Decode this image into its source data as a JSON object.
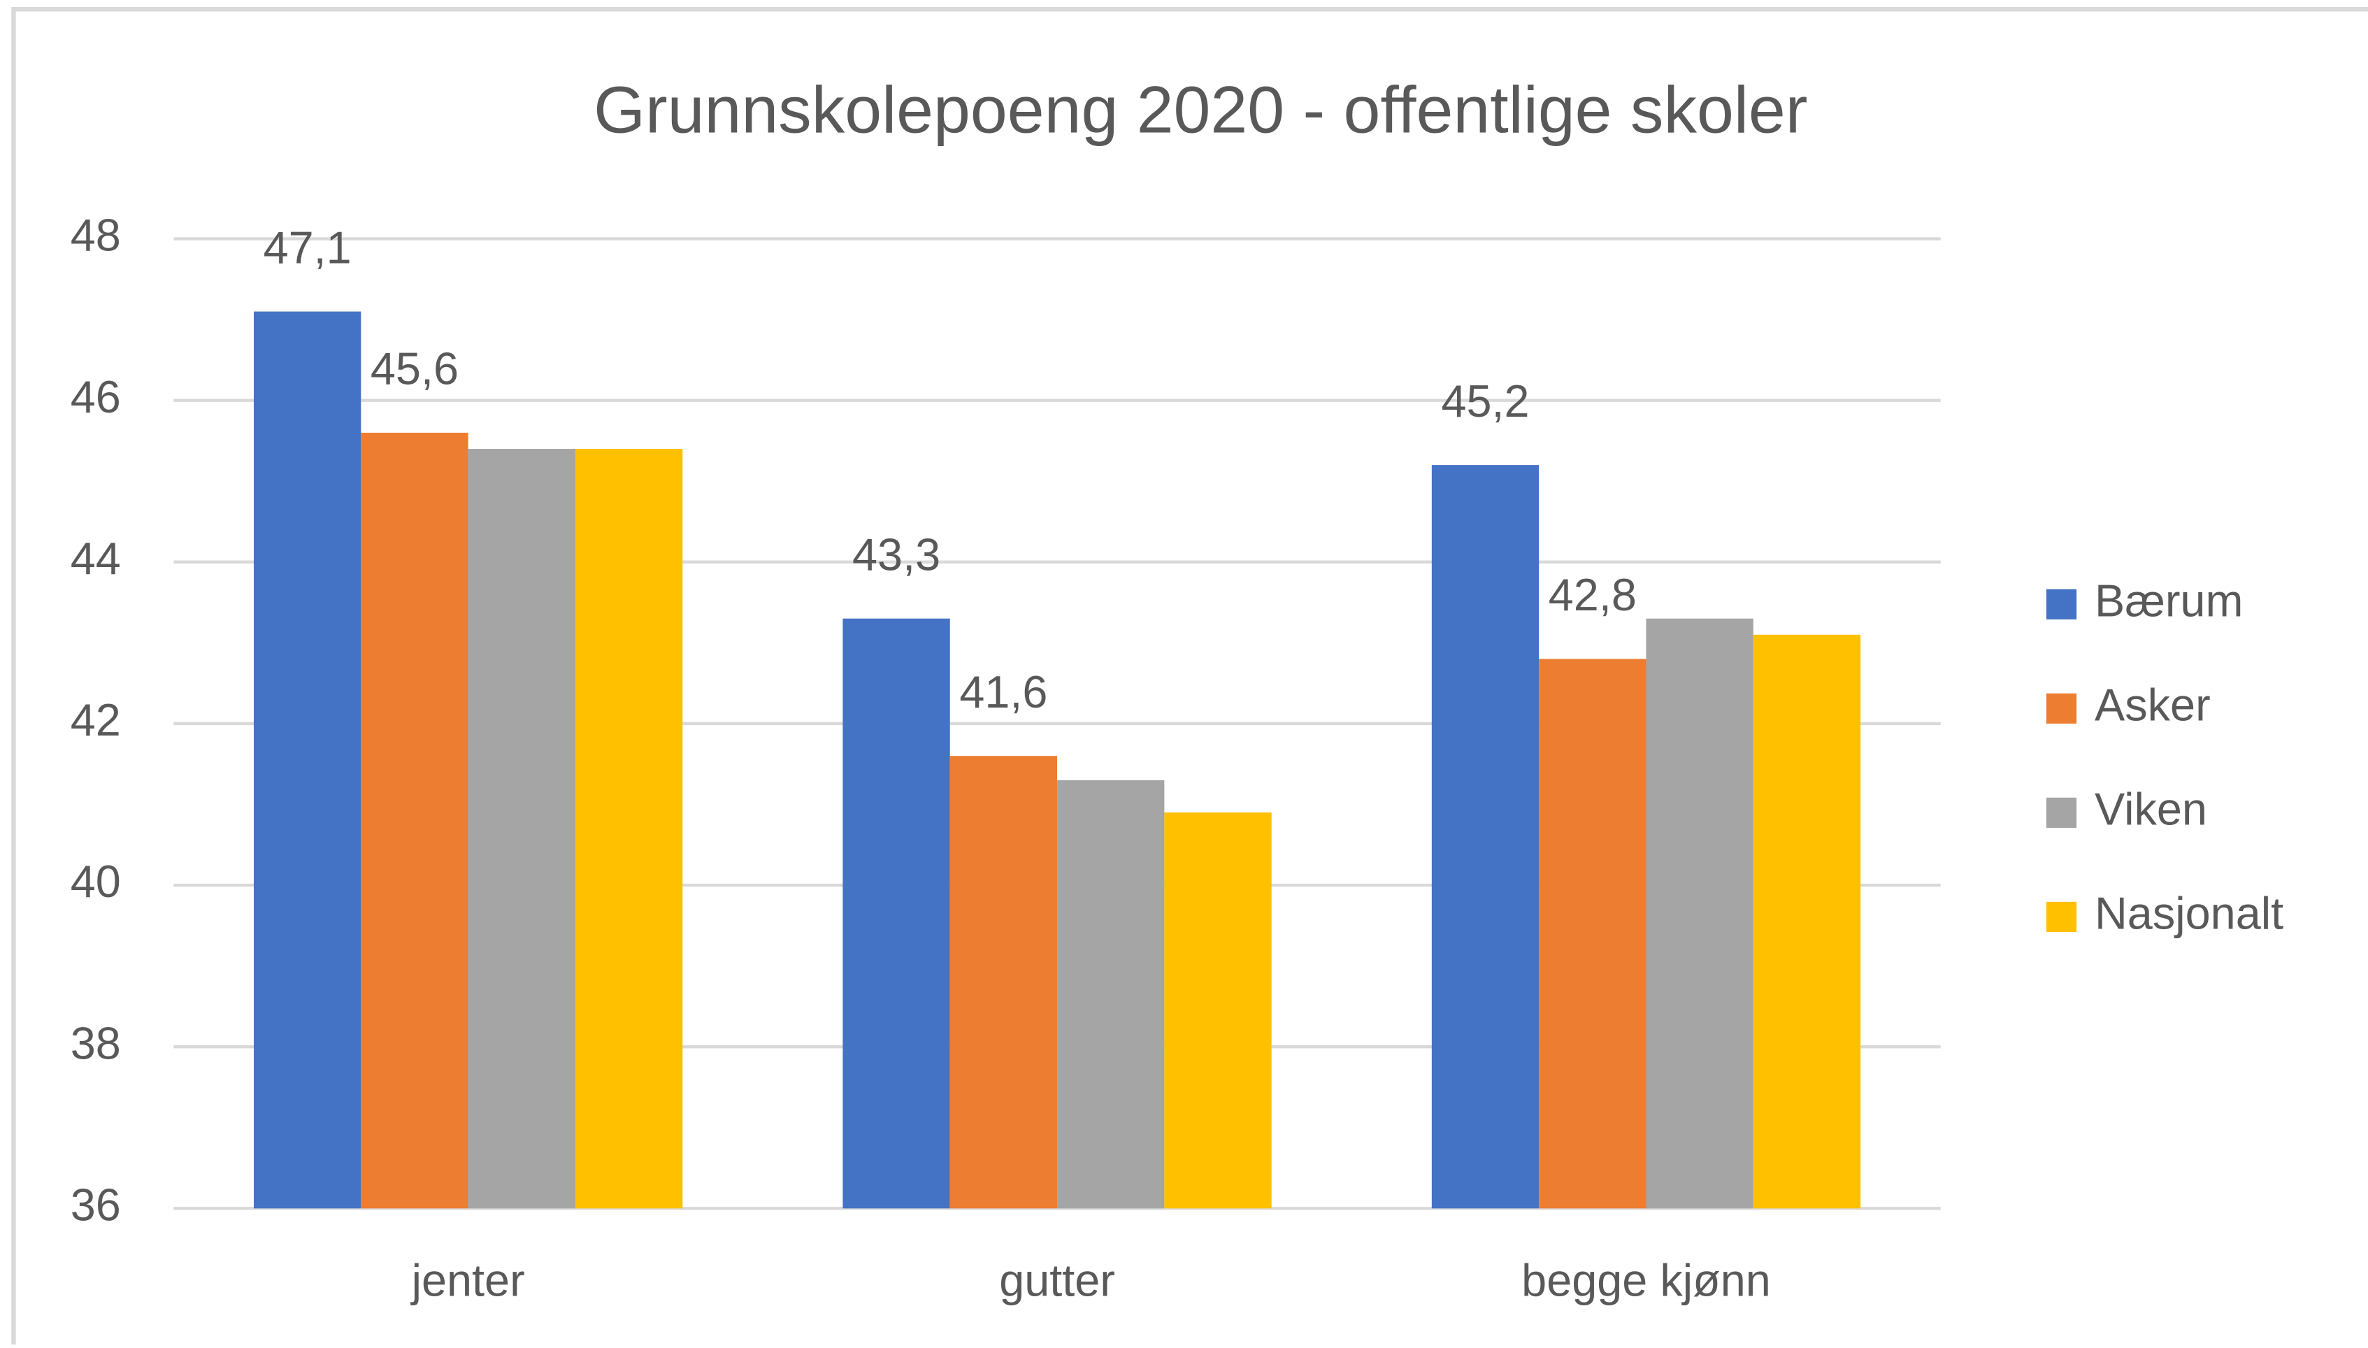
{
  "chart_data": {
    "type": "bar",
    "title": "Grunnskolepoeng  2020 - offentlige skoler",
    "categories": [
      "jenter",
      "gutter",
      "begge kjønn"
    ],
    "series": [
      {
        "name": "Bærum",
        "color": "#4472c4",
        "values": [
          47.1,
          43.3,
          45.2
        ],
        "value_labels": [
          "47,1",
          "43,3",
          "45,2"
        ]
      },
      {
        "name": "Asker",
        "color": "#ed7d31",
        "values": [
          45.6,
          41.6,
          42.8
        ],
        "value_labels": [
          "45,6",
          "41,6",
          "42,8"
        ]
      },
      {
        "name": "Viken",
        "color": "#a5a5a5",
        "values": [
          45.4,
          41.3,
          43.3
        ]
      },
      {
        "name": "Nasjonalt",
        "color": "#ffc000",
        "values": [
          45.4,
          40.9,
          43.1
        ]
      }
    ],
    "ylim": [
      36,
      48
    ],
    "yticks": [
      36,
      38,
      40,
      42,
      44,
      46,
      48
    ],
    "grid": true,
    "legend": "right"
  }
}
